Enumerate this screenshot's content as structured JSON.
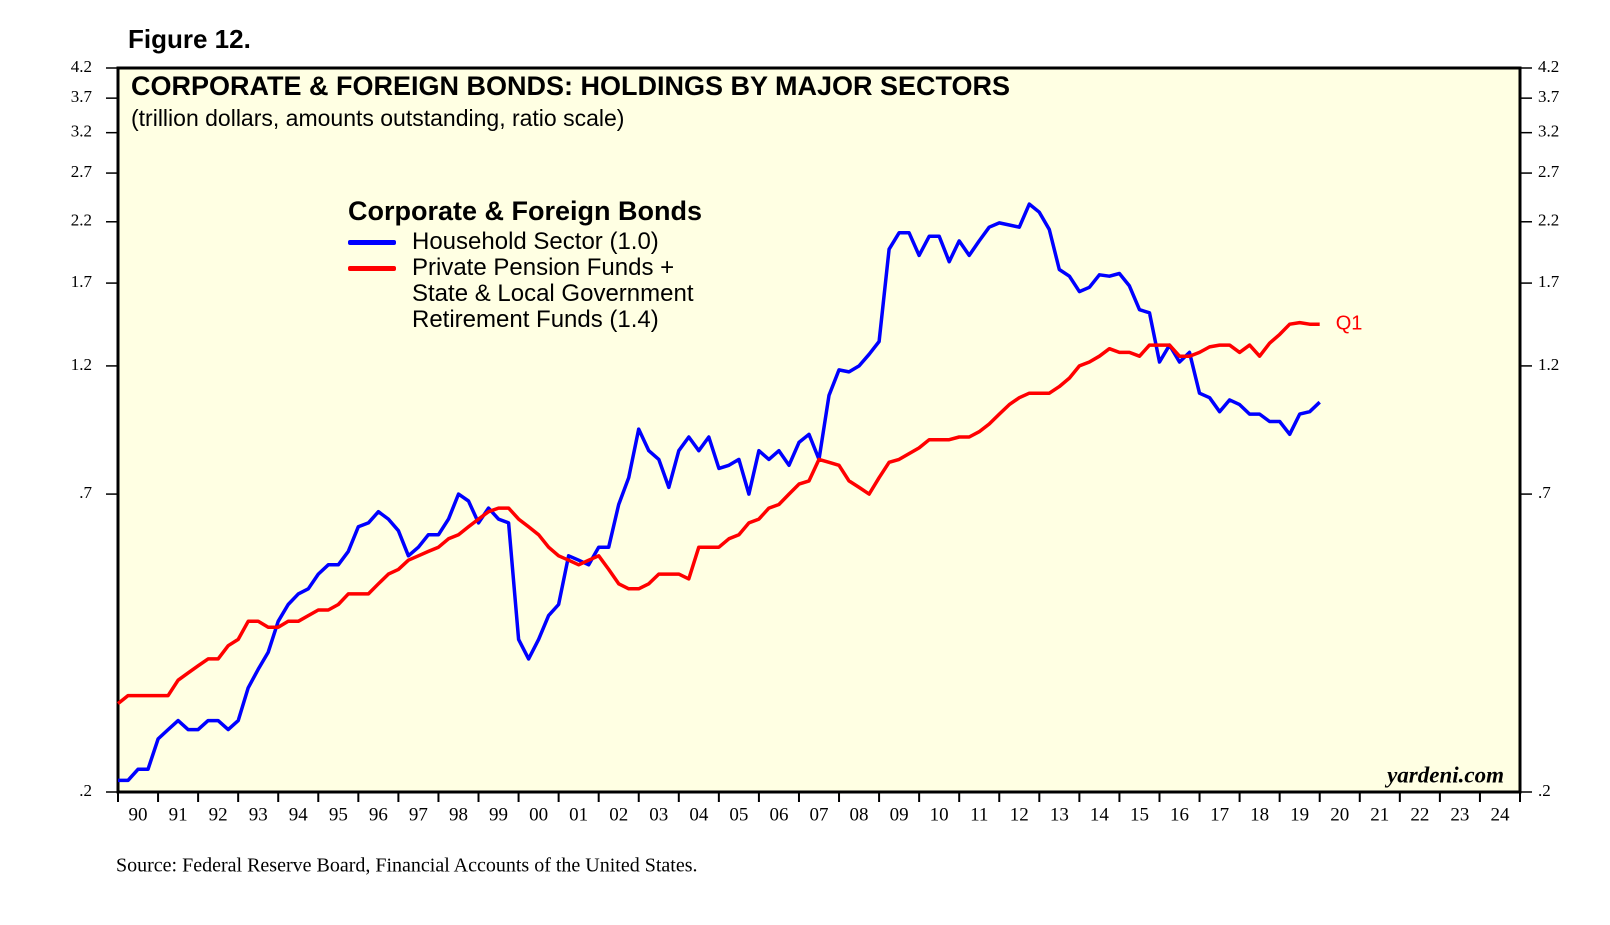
{
  "chart_data": {
    "type": "line",
    "figure_label": "Figure 12.",
    "title": "CORPORATE & FOREIGN BONDS: HOLDINGS BY MAJOR SECTORS",
    "subtitle": "(trillion dollars, amounts outstanding, ratio scale)",
    "legend_title": "Corporate & Foreign Bonds",
    "annotation": "Q1",
    "watermark": "yardeni.com",
    "source": "Source: Federal Reserve Board, Financial Accounts of the United States.",
    "log_scale": true,
    "xlim": [
      1990,
      2025
    ],
    "xticks": [
      {
        "value": 1990,
        "label": "90"
      },
      {
        "value": 1991,
        "label": "91"
      },
      {
        "value": 1992,
        "label": "92"
      },
      {
        "value": 1993,
        "label": "93"
      },
      {
        "value": 1994,
        "label": "94"
      },
      {
        "value": 1995,
        "label": "95"
      },
      {
        "value": 1996,
        "label": "96"
      },
      {
        "value": 1997,
        "label": "97"
      },
      {
        "value": 1998,
        "label": "98"
      },
      {
        "value": 1999,
        "label": "99"
      },
      {
        "value": 2000,
        "label": "00"
      },
      {
        "value": 2001,
        "label": "01"
      },
      {
        "value": 2002,
        "label": "02"
      },
      {
        "value": 2003,
        "label": "03"
      },
      {
        "value": 2004,
        "label": "04"
      },
      {
        "value": 2005,
        "label": "05"
      },
      {
        "value": 2006,
        "label": "06"
      },
      {
        "value": 2007,
        "label": "07"
      },
      {
        "value": 2008,
        "label": "08"
      },
      {
        "value": 2009,
        "label": "09"
      },
      {
        "value": 2010,
        "label": "10"
      },
      {
        "value": 2011,
        "label": "11"
      },
      {
        "value": 2012,
        "label": "12"
      },
      {
        "value": 2013,
        "label": "13"
      },
      {
        "value": 2014,
        "label": "14"
      },
      {
        "value": 2015,
        "label": "15"
      },
      {
        "value": 2016,
        "label": "16"
      },
      {
        "value": 2017,
        "label": "17"
      },
      {
        "value": 2018,
        "label": "18"
      },
      {
        "value": 2019,
        "label": "19"
      },
      {
        "value": 2020,
        "label": "20"
      },
      {
        "value": 2021,
        "label": "21"
      },
      {
        "value": 2022,
        "label": "22"
      },
      {
        "value": 2023,
        "label": "23"
      },
      {
        "value": 2024,
        "label": "24"
      }
    ],
    "ylim": [
      0.2,
      4.2
    ],
    "yticks": [
      {
        "value": 0.2,
        "label": ".2"
      },
      {
        "value": 0.7,
        "label": ".7"
      },
      1.2,
      1.7,
      2.2,
      2.7,
      3.2,
      3.7,
      4.2
    ],
    "x": [
      1990,
      1990.25,
      1990.5,
      1990.75,
      1991,
      1991.25,
      1991.5,
      1991.75,
      1992,
      1992.25,
      1992.5,
      1992.75,
      1993,
      1993.25,
      1993.5,
      1993.75,
      1994,
      1994.25,
      1994.5,
      1994.75,
      1995,
      1995.25,
      1995.5,
      1995.75,
      1996,
      1996.25,
      1996.5,
      1996.75,
      1997,
      1997.25,
      1997.5,
      1997.75,
      1998,
      1998.25,
      1998.5,
      1998.75,
      1999,
      1999.25,
      1999.5,
      1999.75,
      2000,
      2000.25,
      2000.5,
      2000.75,
      2001,
      2001.25,
      2001.5,
      2001.75,
      2002,
      2002.25,
      2002.5,
      2002.75,
      2003,
      2003.25,
      2003.5,
      2003.75,
      2004,
      2004.25,
      2004.5,
      2004.75,
      2005,
      2005.25,
      2005.5,
      2005.75,
      2006,
      2006.25,
      2006.5,
      2006.75,
      2007,
      2007.25,
      2007.5,
      2007.75,
      2008,
      2008.25,
      2008.5,
      2008.75,
      2009,
      2009.25,
      2009.5,
      2009.75,
      2010,
      2010.25,
      2010.5,
      2010.75,
      2011,
      2011.25,
      2011.5,
      2011.75,
      2012,
      2012.25,
      2012.5,
      2012.75,
      2013,
      2013.25,
      2013.5,
      2013.75,
      2014,
      2014.25,
      2014.5,
      2014.75,
      2015,
      2015.25,
      2015.5,
      2015.75,
      2016,
      2016.25,
      2016.5,
      2016.75,
      2017,
      2017.25,
      2017.5,
      2017.75,
      2018,
      2018.25,
      2018.5,
      2018.75,
      2019,
      2019.25,
      2019.5,
      2019.75,
      2020
    ],
    "series": [
      {
        "name": "Household Sector (1.0)",
        "color": "#0000ff",
        "values": [
          0.21,
          0.21,
          0.22,
          0.22,
          0.25,
          0.26,
          0.27,
          0.26,
          0.26,
          0.27,
          0.27,
          0.26,
          0.27,
          0.31,
          0.335,
          0.36,
          0.41,
          0.44,
          0.46,
          0.47,
          0.5,
          0.52,
          0.52,
          0.55,
          0.61,
          0.62,
          0.65,
          0.63,
          0.6,
          0.54,
          0.56,
          0.59,
          0.59,
          0.63,
          0.7,
          0.68,
          0.62,
          0.66,
          0.63,
          0.62,
          0.38,
          0.35,
          0.38,
          0.42,
          0.44,
          0.54,
          0.53,
          0.52,
          0.56,
          0.56,
          0.67,
          0.75,
          0.92,
          0.84,
          0.81,
          0.72,
          0.84,
          0.89,
          0.84,
          0.89,
          0.78,
          0.79,
          0.81,
          0.7,
          0.84,
          0.81,
          0.84,
          0.79,
          0.87,
          0.9,
          0.81,
          1.06,
          1.18,
          1.17,
          1.2,
          1.26,
          1.33,
          1.96,
          2.1,
          2.1,
          1.91,
          2.07,
          2.07,
          1.86,
          2.03,
          1.91,
          2.03,
          2.15,
          2.19,
          2.17,
          2.15,
          2.37,
          2.29,
          2.13,
          1.8,
          1.75,
          1.64,
          1.67,
          1.76,
          1.75,
          1.77,
          1.68,
          1.52,
          1.5,
          1.22,
          1.31,
          1.22,
          1.27,
          1.07,
          1.05,
          0.99,
          1.04,
          1.02,
          0.98,
          0.98,
          0.95,
          0.95,
          0.9,
          0.98,
          0.99,
          1.03
        ]
      },
      {
        "name": "Private Pension Funds +\nState & Local Government\nRetirement Funds (1.4)",
        "color": "#ff0000",
        "values": [
          0.29,
          0.3,
          0.3,
          0.3,
          0.3,
          0.3,
          0.32,
          0.33,
          0.34,
          0.35,
          0.35,
          0.37,
          0.38,
          0.41,
          0.41,
          0.4,
          0.4,
          0.41,
          0.41,
          0.42,
          0.43,
          0.43,
          0.44,
          0.46,
          0.46,
          0.46,
          0.48,
          0.5,
          0.51,
          0.53,
          0.54,
          0.55,
          0.56,
          0.58,
          0.59,
          0.61,
          0.63,
          0.65,
          0.66,
          0.66,
          0.63,
          0.61,
          0.59,
          0.56,
          0.54,
          0.53,
          0.52,
          0.53,
          0.54,
          0.51,
          0.48,
          0.47,
          0.47,
          0.48,
          0.5,
          0.5,
          0.5,
          0.49,
          0.56,
          0.56,
          0.56,
          0.58,
          0.59,
          0.62,
          0.63,
          0.66,
          0.67,
          0.7,
          0.73,
          0.74,
          0.81,
          0.8,
          0.79,
          0.74,
          0.72,
          0.7,
          0.75,
          0.8,
          0.81,
          0.83,
          0.85,
          0.88,
          0.88,
          0.88,
          0.89,
          0.89,
          0.91,
          0.94,
          0.98,
          1.02,
          1.05,
          1.07,
          1.07,
          1.07,
          1.1,
          1.14,
          1.2,
          1.22,
          1.25,
          1.29,
          1.27,
          1.27,
          1.25,
          1.31,
          1.31,
          1.31,
          1.25,
          1.25,
          1.27,
          1.3,
          1.31,
          1.31,
          1.27,
          1.31,
          1.25,
          1.32,
          1.37,
          1.43,
          1.44,
          1.43,
          1.43
        ]
      }
    ]
  }
}
